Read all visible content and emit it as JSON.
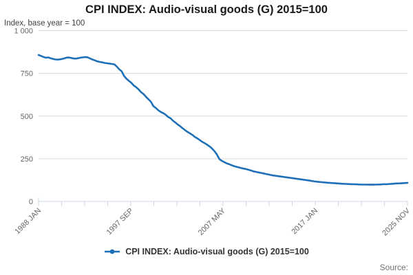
{
  "title": "CPI INDEX: Audio-visual goods (G) 2015=100",
  "subtitle": "Index, base year = 100",
  "source_label": "Source:",
  "legend": {
    "label": "CPI INDEX: Audio-visual goods (G) 2015=100",
    "marker": "line-dot"
  },
  "colors": {
    "line": "#1d70b8",
    "grid": "#d9d9d9",
    "axis": "#ccd6eb",
    "tick_label": "#666666"
  },
  "chart_data": {
    "type": "line",
    "title": "CPI INDEX: Audio-visual goods (G) 2015=100",
    "subtitle": "Index, base year = 100",
    "xlabel": "",
    "ylabel": "Index, base year = 100",
    "ylim": [
      0,
      1000
    ],
    "yticks": [
      0,
      250,
      500,
      750,
      1000
    ],
    "ytick_labels": [
      "0",
      "250",
      "500",
      "750",
      "1 000"
    ],
    "x_range": "1988 JAN to 2025 NOV, monthly",
    "x_tick_labels": [
      "1988 JAN",
      "1997 SEP",
      "2007 MAY",
      "2017 JAN",
      "2025 NOV"
    ],
    "minor_tick_count": 17,
    "grid": "horizontal",
    "legend_position": "bottom",
    "series": [
      {
        "name": "CPI INDEX: Audio-visual goods (G) 2015=100",
        "values": [
          857,
          852,
          846,
          841,
          843,
          838,
          834,
          831,
          830,
          832,
          835,
          840,
          843,
          841,
          838,
          836,
          838,
          841,
          843,
          845,
          844,
          838,
          831,
          826,
          820,
          817,
          814,
          811,
          809,
          807,
          805,
          803,
          790,
          774,
          762,
          735,
          718,
          706,
          694,
          678,
          668,
          655,
          639,
          628,
          612,
          598,
          583,
          558,
          547,
          534,
          524,
          517,
          508,
          495,
          487,
          473,
          462,
          450,
          440,
          428,
          417,
          407,
          398,
          389,
          377,
          369,
          359,
          349,
          341,
          332,
          322,
          310,
          294,
          275,
          248,
          238,
          230,
          223,
          218,
          212,
          207,
          203,
          199,
          195,
          192,
          189,
          185,
          181,
          176,
          173,
          170,
          167,
          164,
          161,
          158,
          155,
          152,
          150,
          148,
          146,
          144,
          142,
          140,
          138,
          136,
          134,
          132,
          130,
          128,
          126,
          124,
          122,
          119,
          117,
          115.5,
          114,
          112.5,
          111.5,
          110,
          109,
          108,
          107,
          106,
          105,
          104,
          103,
          102.5,
          101.5,
          101,
          100.5,
          100,
          99.5,
          99,
          98.5,
          98.5,
          98,
          98,
          98,
          98.5,
          99,
          99.5,
          100.5,
          101,
          101.5,
          102.5,
          103.5,
          105,
          105.5,
          106,
          107,
          108,
          109
        ]
      }
    ]
  }
}
